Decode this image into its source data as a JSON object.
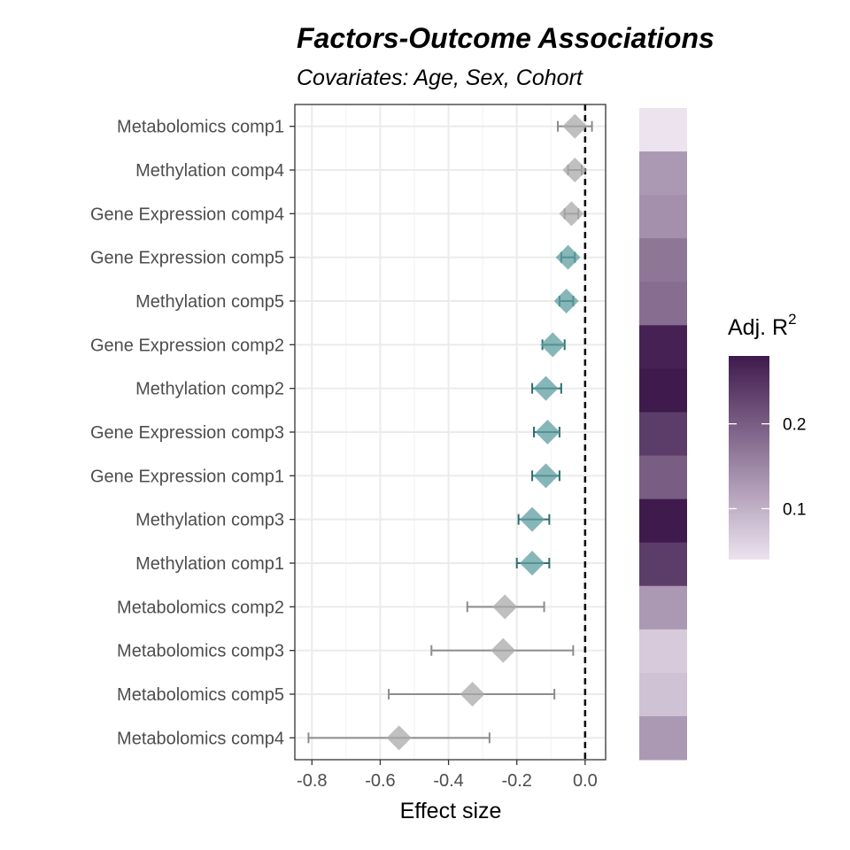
{
  "chart_data": {
    "type": "forest",
    "title": "Factors-Outcome Associations",
    "subtitle": "Covariates: Age, Sex, Cohort",
    "xlabel": "Effect size",
    "xlim": [
      -0.85,
      0.06
    ],
    "x_ticks": [
      -0.8,
      -0.6,
      -0.4,
      -0.2,
      0.0
    ],
    "x_tick_labels": [
      "-0.8",
      "-0.6",
      "-0.4",
      "-0.2",
      "0.0"
    ],
    "reference_line": 0,
    "grid": true,
    "colors": {
      "significant": "#5f9ea0",
      "not_significant": "#a9a9a9",
      "heat_low": "#ece3ef",
      "heat_high": "#3f1a4d"
    },
    "rows": [
      {
        "label": "Metabolomics comp1",
        "estimate": -0.03,
        "lower": -0.08,
        "upper": 0.02,
        "significant": false,
        "adj_r2": 0.04
      },
      {
        "label": "Methylation comp4",
        "estimate": -0.03,
        "lower": -0.05,
        "upper": -0.01,
        "significant": false,
        "adj_r2": 0.13
      },
      {
        "label": "Gene Expression comp4",
        "estimate": -0.04,
        "lower": -0.06,
        "upper": -0.02,
        "significant": false,
        "adj_r2": 0.14
      },
      {
        "label": "Gene Expression comp5",
        "estimate": -0.05,
        "lower": -0.07,
        "upper": -0.03,
        "significant": true,
        "adj_r2": 0.17
      },
      {
        "label": "Methylation comp5",
        "estimate": -0.055,
        "lower": -0.075,
        "upper": -0.035,
        "significant": true,
        "adj_r2": 0.18
      },
      {
        "label": "Gene Expression comp2",
        "estimate": -0.095,
        "lower": -0.125,
        "upper": -0.06,
        "significant": true,
        "adj_r2": 0.27
      },
      {
        "label": "Methylation comp2",
        "estimate": -0.115,
        "lower": -0.155,
        "upper": -0.07,
        "significant": true,
        "adj_r2": 0.28
      },
      {
        "label": "Gene Expression comp3",
        "estimate": -0.11,
        "lower": -0.15,
        "upper": -0.075,
        "significant": true,
        "adj_r2": 0.24
      },
      {
        "label": "Gene Expression comp1",
        "estimate": -0.115,
        "lower": -0.155,
        "upper": -0.075,
        "significant": true,
        "adj_r2": 0.2
      },
      {
        "label": "Methylation comp3",
        "estimate": -0.155,
        "lower": -0.195,
        "upper": -0.105,
        "significant": true,
        "adj_r2": 0.28
      },
      {
        "label": "Methylation comp1",
        "estimate": -0.155,
        "lower": -0.2,
        "upper": -0.105,
        "significant": true,
        "adj_r2": 0.24
      },
      {
        "label": "Metabolomics comp2",
        "estimate": -0.235,
        "lower": -0.345,
        "upper": -0.12,
        "significant": false,
        "adj_r2": 0.13
      },
      {
        "label": "Metabolomics comp3",
        "estimate": -0.24,
        "lower": -0.45,
        "upper": -0.035,
        "significant": false,
        "adj_r2": 0.07
      },
      {
        "label": "Metabolomics comp5",
        "estimate": -0.33,
        "lower": -0.575,
        "upper": -0.09,
        "significant": false,
        "adj_r2": 0.08
      },
      {
        "label": "Metabolomics comp4",
        "estimate": -0.545,
        "lower": -0.81,
        "upper": -0.28,
        "significant": false,
        "adj_r2": 0.13
      }
    ],
    "legend": {
      "title_prefix": "Adj. R",
      "title_sup": "2",
      "range": [
        0.04,
        0.28
      ],
      "ticks": [
        0.1,
        0.2
      ],
      "tick_labels": [
        "0.1",
        "0.2"
      ],
      "position": "right"
    }
  }
}
